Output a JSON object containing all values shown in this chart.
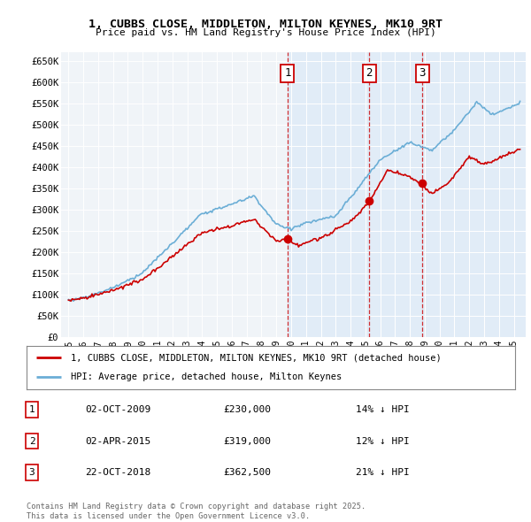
{
  "title": "1, CUBBS CLOSE, MIDDLETON, MILTON KEYNES, MK10 9RT",
  "subtitle": "Price paid vs. HM Land Registry's House Price Index (HPI)",
  "hpi_label": "HPI: Average price, detached house, Milton Keynes",
  "price_label": "1, CUBBS CLOSE, MIDDLETON, MILTON KEYNES, MK10 9RT (detached house)",
  "transactions": [
    {
      "num": 1,
      "date": "02-OCT-2009",
      "price": 230000,
      "pct": "14%",
      "x_year": 2009.75
    },
    {
      "num": 2,
      "date": "02-APR-2015",
      "price": 319000,
      "pct": "12%",
      "x_year": 2015.25
    },
    {
      "num": 3,
      "date": "22-OCT-2018",
      "price": 362500,
      "pct": "21%",
      "x_year": 2018.83
    }
  ],
  "footer1": "Contains HM Land Registry data © Crown copyright and database right 2025.",
  "footer2": "This data is licensed under the Open Government Licence v3.0.",
  "hpi_color": "#6baed6",
  "hpi_fill_color": "#deeaf7",
  "price_color": "#cc0000",
  "bg_color_left": "#f0f4f8",
  "bg_color_right": "#ddeeff",
  "ylim": [
    0,
    670000
  ],
  "yticks": [
    0,
    50000,
    100000,
    150000,
    200000,
    250000,
    300000,
    350000,
    400000,
    450000,
    500000,
    550000,
    600000,
    650000
  ],
  "xlim": [
    1994.5,
    2025.8
  ],
  "trans_x": 2009.75
}
